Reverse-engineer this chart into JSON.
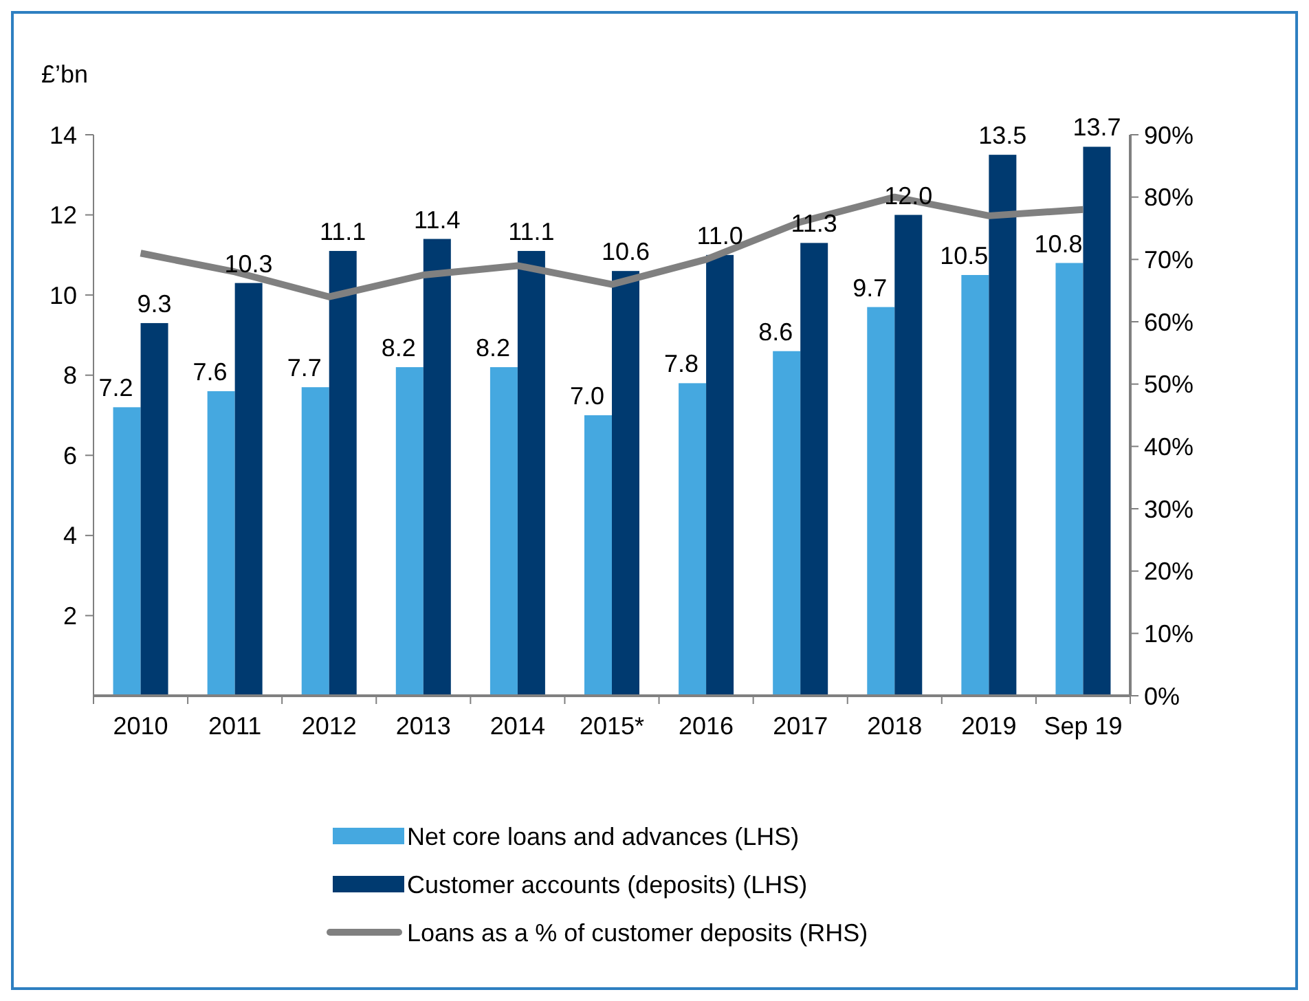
{
  "chart_data": {
    "type": "bar",
    "ylabel": "£’bn",
    "categories": [
      "2010",
      "2011",
      "2012",
      "2013",
      "2014",
      "2015*",
      "2016",
      "2017",
      "2018",
      "2019",
      "Sep 19"
    ],
    "series": [
      {
        "name": "Net core loans and advances (LHS)",
        "color": "#45a8e0",
        "values": [
          7.2,
          7.6,
          7.7,
          8.2,
          8.2,
          7.0,
          7.8,
          8.6,
          9.7,
          10.5,
          10.8
        ],
        "value_labels": [
          "7.2",
          "7.6",
          "7.7",
          "8.2",
          "8.2",
          "7.0",
          "7.8",
          "8.6",
          "9.7",
          "10.5",
          "10.8"
        ]
      },
      {
        "name": "Customer accounts (deposits) (LHS)",
        "color": "#003a70",
        "values": [
          9.3,
          10.3,
          11.1,
          11.4,
          11.1,
          10.6,
          11.0,
          11.3,
          12.0,
          13.5,
          13.7
        ],
        "value_labels": [
          "9.3",
          "10.3",
          "11.1",
          "11.4",
          "11.1",
          "10.6",
          "11.0",
          "11.3",
          "12.0",
          "13.5",
          "13.7"
        ]
      },
      {
        "name": "Loans as a % of customer deposits (RHS)",
        "type": "line",
        "axis": "y2",
        "color": "#808080",
        "marker": "none",
        "values": [
          71,
          68,
          64,
          67.5,
          69,
          66,
          70,
          76,
          80,
          77,
          78
        ]
      }
    ],
    "ylim": [
      0,
      14
    ],
    "yticks": [
      2,
      4,
      6,
      8,
      10,
      12,
      14
    ],
    "y2lim": [
      0,
      90
    ],
    "y2ticks": [
      {
        "value": 0,
        "label": "0%"
      },
      {
        "value": 10,
        "label": "10%"
      },
      {
        "value": 20,
        "label": "20%"
      },
      {
        "value": 30,
        "label": "30%"
      },
      {
        "value": 40,
        "label": "40%"
      },
      {
        "value": 50,
        "label": "50%"
      },
      {
        "value": 60,
        "label": "60%"
      },
      {
        "value": 70,
        "label": "70%"
      },
      {
        "value": 80,
        "label": "80%"
      },
      {
        "value": 90,
        "label": "90%"
      }
    ],
    "grid": false,
    "legend": "bottom"
  }
}
